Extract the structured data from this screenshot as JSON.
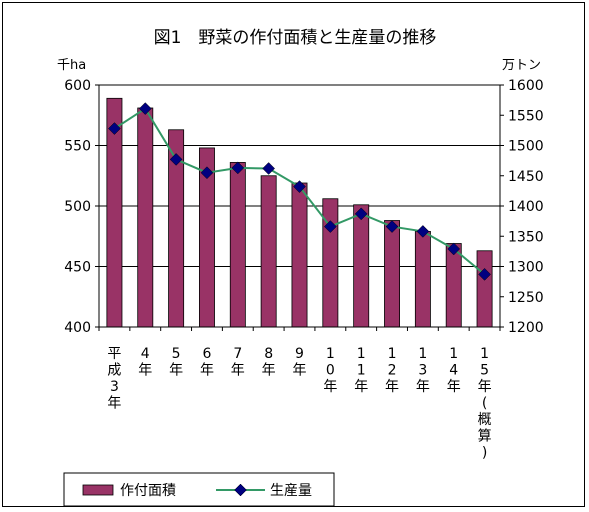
{
  "chart_data": {
    "type": "bar",
    "title": "図1　野菜の作付面積と生産量の推移",
    "ylabel_left": "千ha",
    "ylabel_right": "万トン",
    "ylim_left": [
      400,
      600
    ],
    "ylim_right": [
      1200,
      1600
    ],
    "yticks_left": [
      "400",
      "450",
      "500",
      "550",
      "600"
    ],
    "yticks_right": [
      "1200",
      "1250",
      "1300",
      "1350",
      "1400",
      "1450",
      "1500",
      "1550",
      "1600"
    ],
    "categories": [
      "平成3年",
      "4年",
      "5年",
      "6年",
      "7年",
      "8年",
      "9年",
      "10年",
      "11年",
      "12年",
      "13年",
      "14年",
      "15年（概算）"
    ],
    "category_label_chars": [
      [
        "平",
        "成",
        "3",
        "年"
      ],
      [
        "4",
        "年"
      ],
      [
        "5",
        "年"
      ],
      [
        "6",
        "年"
      ],
      [
        "7",
        "年"
      ],
      [
        "8",
        "年"
      ],
      [
        "9",
        "年"
      ],
      [
        "1",
        "0",
        "年"
      ],
      [
        "1",
        "1",
        "年"
      ],
      [
        "1",
        "2",
        "年"
      ],
      [
        "1",
        "3",
        "年"
      ],
      [
        "1",
        "4",
        "年"
      ],
      [
        "1",
        "5",
        "年",
        "（",
        "概",
        "算",
        "）"
      ]
    ],
    "series": [
      {
        "name": "作付面積",
        "type": "bar",
        "axis": "left",
        "color": "#993366",
        "values": [
          589,
          581,
          563,
          548,
          536,
          525,
          519,
          506,
          501,
          488,
          479,
          469,
          463
        ]
      },
      {
        "name": "生産量",
        "type": "line",
        "axis": "right",
        "color": "#339966",
        "marker_color": "#000080",
        "values": [
          1528,
          1561,
          1477,
          1455,
          1463,
          1462,
          1432,
          1366,
          1387,
          1366,
          1358,
          1329,
          1287
        ]
      }
    ],
    "grid": true,
    "legend_position": "bottom-left"
  }
}
